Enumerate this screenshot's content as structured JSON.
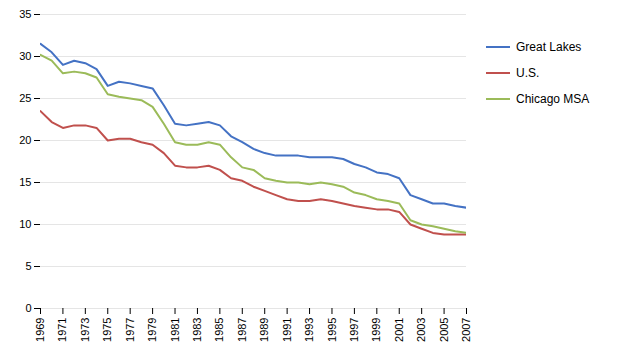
{
  "chart_data": {
    "type": "line",
    "x": [
      1969,
      1970,
      1971,
      1972,
      1973,
      1974,
      1975,
      1976,
      1977,
      1978,
      1979,
      1980,
      1981,
      1982,
      1983,
      1984,
      1985,
      1986,
      1987,
      1988,
      1989,
      1990,
      1991,
      1992,
      1993,
      1994,
      1995,
      1996,
      1997,
      1998,
      1999,
      2000,
      2001,
      2002,
      2003,
      2004,
      2005,
      2006,
      2007
    ],
    "series": [
      {
        "name": "Great Lakes",
        "color": "#4472C4",
        "values": [
          31.5,
          30.5,
          29.0,
          29.5,
          29.2,
          28.5,
          26.5,
          27.0,
          26.8,
          26.5,
          26.2,
          24.2,
          22.0,
          21.8,
          22.0,
          22.2,
          21.8,
          20.5,
          19.8,
          19.0,
          18.5,
          18.2,
          18.2,
          18.2,
          18.0,
          18.0,
          18.0,
          17.8,
          17.2,
          16.8,
          16.2,
          16.0,
          15.5,
          13.5,
          13.0,
          12.5,
          12.5,
          12.2,
          12.0
        ]
      },
      {
        "name": "U.S.",
        "color": "#C0504D",
        "values": [
          23.5,
          22.2,
          21.5,
          21.8,
          21.8,
          21.5,
          20.0,
          20.2,
          20.2,
          19.8,
          19.5,
          18.5,
          17.0,
          16.8,
          16.8,
          17.0,
          16.5,
          15.5,
          15.2,
          14.5,
          14.0,
          13.5,
          13.0,
          12.8,
          12.8,
          13.0,
          12.8,
          12.5,
          12.2,
          12.0,
          11.8,
          11.8,
          11.5,
          10.0,
          9.5,
          9.0,
          8.8,
          8.8,
          8.8
        ]
      },
      {
        "name": "Chicago MSA",
        "color": "#9BBB59",
        "values": [
          30.2,
          29.5,
          28.0,
          28.2,
          28.0,
          27.5,
          25.5,
          25.2,
          25.0,
          24.8,
          24.0,
          22.0,
          19.8,
          19.5,
          19.5,
          19.8,
          19.5,
          18.0,
          16.8,
          16.5,
          15.5,
          15.2,
          15.0,
          15.0,
          14.8,
          15.0,
          14.8,
          14.5,
          13.8,
          13.5,
          13.0,
          12.8,
          12.5,
          10.5,
          10.0,
          9.8,
          9.5,
          9.2,
          9.0
        ]
      }
    ],
    "xlim": [
      1969,
      2007
    ],
    "xticks": [
      1969,
      1971,
      1973,
      1975,
      1977,
      1979,
      1981,
      1983,
      1985,
      1987,
      1989,
      1991,
      1993,
      1995,
      1997,
      1999,
      2001,
      2003,
      2005,
      2007
    ],
    "ylim": [
      0,
      35
    ],
    "yticks": [
      0,
      5,
      10,
      15,
      20,
      25,
      30,
      35
    ],
    "grid": "y",
    "legend": "right"
  }
}
